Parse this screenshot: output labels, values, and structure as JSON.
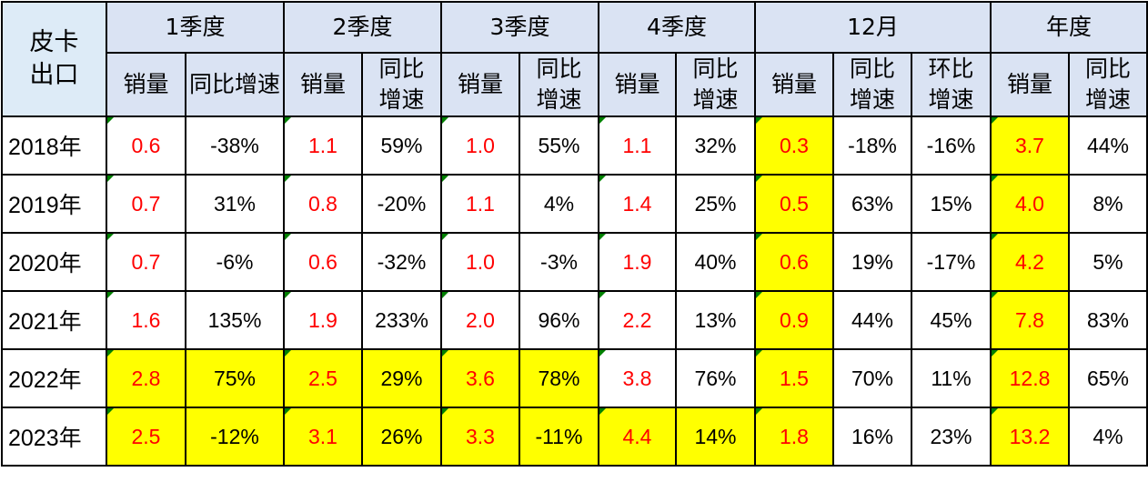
{
  "table": {
    "corner_label": "皮卡\n出口",
    "groups": [
      "1季度",
      "2季度",
      "3季度",
      "4季度",
      "12月",
      "年度"
    ],
    "subheaders": [
      "销量",
      "同比增速",
      "销量",
      "同比\n增速",
      "销量",
      "同比\n增速",
      "销量",
      "同比\n增速",
      "销量",
      "同比\n增速",
      "环比\n增速",
      "销量",
      "同比\n增速"
    ],
    "rows": [
      {
        "year": "2018年",
        "cells": [
          "0.6",
          "-38%",
          "1.1",
          "59%",
          "1.0",
          "55%",
          "1.1",
          "32%",
          "0.3",
          "-18%",
          "-16%",
          "3.7",
          "44%"
        ]
      },
      {
        "year": "2019年",
        "cells": [
          "0.7",
          "31%",
          "0.8",
          "-20%",
          "1.1",
          "4%",
          "1.4",
          "25%",
          "0.5",
          "63%",
          "15%",
          "4.0",
          "8%"
        ]
      },
      {
        "year": "2020年",
        "cells": [
          "0.7",
          "-6%",
          "0.6",
          "-32%",
          "1.0",
          "-3%",
          "1.9",
          "40%",
          "0.6",
          "19%",
          "-17%",
          "4.2",
          "5%"
        ]
      },
      {
        "year": "2021年",
        "cells": [
          "1.6",
          "135%",
          "1.9",
          "233%",
          "2.0",
          "96%",
          "2.2",
          "13%",
          "0.9",
          "44%",
          "45%",
          "7.8",
          "83%"
        ]
      },
      {
        "year": "2022年",
        "cells": [
          "2.8",
          "75%",
          "2.5",
          "29%",
          "3.6",
          "78%",
          "3.8",
          "76%",
          "1.5",
          "70%",
          "11%",
          "12.8",
          "65%"
        ]
      },
      {
        "year": "2023年",
        "cells": [
          "2.5",
          "-12%",
          "3.1",
          "26%",
          "3.3",
          "-11%",
          "4.4",
          "14%",
          "1.8",
          "16%",
          "23%",
          "13.2",
          "4%"
        ]
      }
    ],
    "highlight_color": "#ffff00",
    "sales_text_color": "#ff0000",
    "header_color": "#dae3f3"
  }
}
